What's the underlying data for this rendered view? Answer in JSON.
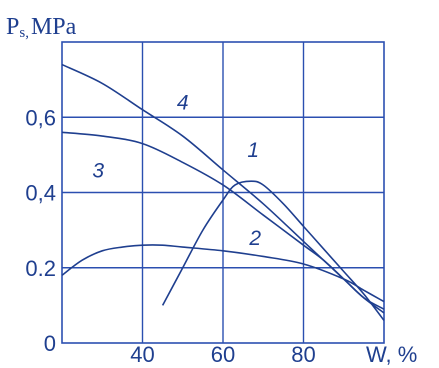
{
  "chart_data": {
    "type": "line",
    "ylabel_main": "P",
    "ylabel_sub": "s,",
    "ylabel_unit": "MPa",
    "xlabel": "W, %",
    "xlim": [
      20,
      100
    ],
    "ylim": [
      0,
      0.8
    ],
    "x_ticks": [
      "40",
      "60",
      "80"
    ],
    "y_ticks": [
      "0",
      "0.2",
      "0,4",
      "0,6"
    ],
    "grid": true,
    "colors": {
      "line": "#1f3f8f",
      "grid": "#2b4fb0",
      "text": "#1f3f8f"
    },
    "series": [
      {
        "name": "1",
        "points": [
          [
            45,
            0.1
          ],
          [
            50,
            0.2
          ],
          [
            55,
            0.3
          ],
          [
            60,
            0.38
          ],
          [
            63,
            0.42
          ],
          [
            67,
            0.43
          ],
          [
            70,
            0.42
          ],
          [
            75,
            0.37
          ],
          [
            80,
            0.31
          ],
          [
            85,
            0.25
          ],
          [
            90,
            0.19
          ],
          [
            95,
            0.13
          ],
          [
            100,
            0.06
          ]
        ]
      },
      {
        "name": "2",
        "points": [
          [
            20,
            0.18
          ],
          [
            25,
            0.22
          ],
          [
            30,
            0.245
          ],
          [
            35,
            0.255
          ],
          [
            40,
            0.26
          ],
          [
            45,
            0.26
          ],
          [
            50,
            0.255
          ],
          [
            60,
            0.245
          ],
          [
            70,
            0.23
          ],
          [
            80,
            0.21
          ],
          [
            90,
            0.17
          ],
          [
            95,
            0.14
          ],
          [
            100,
            0.11
          ]
        ]
      },
      {
        "name": "3",
        "points": [
          [
            20,
            0.56
          ],
          [
            30,
            0.55
          ],
          [
            40,
            0.53
          ],
          [
            50,
            0.48
          ],
          [
            60,
            0.42
          ],
          [
            70,
            0.34
          ],
          [
            80,
            0.26
          ],
          [
            85,
            0.22
          ],
          [
            90,
            0.17
          ],
          [
            95,
            0.12
          ],
          [
            100,
            0.09
          ]
        ]
      },
      {
        "name": "4",
        "points": [
          [
            20,
            0.74
          ],
          [
            30,
            0.69
          ],
          [
            40,
            0.62
          ],
          [
            50,
            0.55
          ],
          [
            60,
            0.46
          ],
          [
            70,
            0.37
          ],
          [
            80,
            0.27
          ],
          [
            90,
            0.17
          ],
          [
            95,
            0.12
          ],
          [
            100,
            0.08
          ]
        ]
      }
    ],
    "curve_labels": [
      {
        "text": "1",
        "x": 67.5,
        "y": 0.495
      },
      {
        "text": "2",
        "x": 68,
        "y": 0.26
      },
      {
        "text": "3",
        "x": 29,
        "y": 0.44
      },
      {
        "text": "4",
        "x": 50,
        "y": 0.62
      }
    ]
  }
}
